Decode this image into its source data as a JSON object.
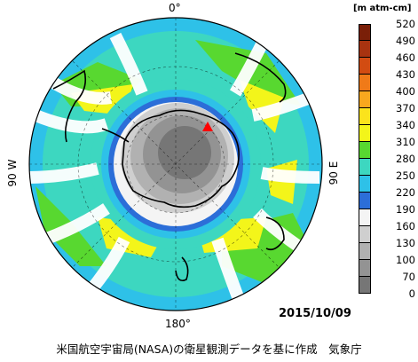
{
  "map": {
    "longitude_labels": {
      "top": "0°",
      "bottom": "180°",
      "left": "90 W",
      "right": "90 E"
    },
    "date": "2015/10/09",
    "marker": {
      "shape": "triangle",
      "color": "#ff0000"
    }
  },
  "legend": {
    "unit": "[m atm-cm]",
    "entries": [
      {
        "value": "520",
        "color": "#7a1f08"
      },
      {
        "value": "490",
        "color": "#a83310"
      },
      {
        "value": "460",
        "color": "#d24c12"
      },
      {
        "value": "430",
        "color": "#f07a18"
      },
      {
        "value": "400",
        "color": "#f8a81e"
      },
      {
        "value": "370",
        "color": "#fbe31c"
      },
      {
        "value": "340",
        "color": "#f3f51a"
      },
      {
        "value": "310",
        "color": "#58d830"
      },
      {
        "value": "280",
        "color": "#3dd7c0"
      },
      {
        "value": "250",
        "color": "#2ec1e8"
      },
      {
        "value": "220",
        "color": "#2c6ed8"
      },
      {
        "value": "190",
        "color": "#f4f4f4"
      },
      {
        "value": "160",
        "color": "#cfcfcf"
      },
      {
        "value": "130",
        "color": "#b1b1b1"
      },
      {
        "value": "100",
        "color": "#939393"
      },
      {
        "value": "70",
        "color": "#767676"
      },
      {
        "value": "0",
        "color": "#4a4a4a"
      }
    ]
  },
  "credit": "米国航空宇宙局(NASA)の衛星観測データを基に作成　気象庁"
}
